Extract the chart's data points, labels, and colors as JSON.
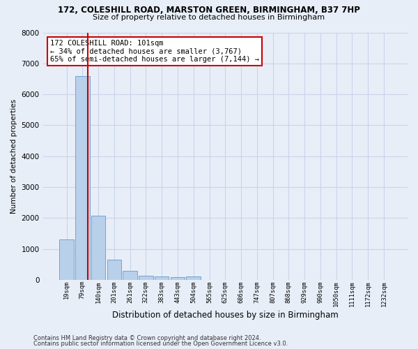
{
  "title_line1": "172, COLESHILL ROAD, MARSTON GREEN, BIRMINGHAM, B37 7HP",
  "title_line2": "Size of property relative to detached houses in Birmingham",
  "xlabel": "Distribution of detached houses by size in Birmingham",
  "ylabel": "Number of detached properties",
  "categories": [
    "19sqm",
    "79sqm",
    "140sqm",
    "201sqm",
    "261sqm",
    "322sqm",
    "383sqm",
    "443sqm",
    "504sqm",
    "565sqm",
    "625sqm",
    "686sqm",
    "747sqm",
    "807sqm",
    "868sqm",
    "929sqm",
    "990sqm",
    "1050sqm",
    "1111sqm",
    "1172sqm",
    "1232sqm"
  ],
  "values": [
    1300,
    6600,
    2080,
    660,
    290,
    140,
    100,
    80,
    100,
    0,
    0,
    0,
    0,
    0,
    0,
    0,
    0,
    0,
    0,
    0,
    0
  ],
  "bar_color": "#b8d0ea",
  "bar_edgecolor": "#6699cc",
  "vline_color": "#cc0000",
  "annotation_text": "172 COLESHILL ROAD: 101sqm\n← 34% of detached houses are smaller (3,767)\n65% of semi-detached houses are larger (7,144) →",
  "annotation_box_color": "#ffffff",
  "annotation_box_edgecolor": "#cc0000",
  "ylim": [
    0,
    8000
  ],
  "yticks": [
    0,
    1000,
    2000,
    3000,
    4000,
    5000,
    6000,
    7000,
    8000
  ],
  "grid_color": "#c8d4e8",
  "background_color": "#e8eef8",
  "footer_line1": "Contains HM Land Registry data © Crown copyright and database right 2024.",
  "footer_line2": "Contains public sector information licensed under the Open Government Licence v3.0."
}
